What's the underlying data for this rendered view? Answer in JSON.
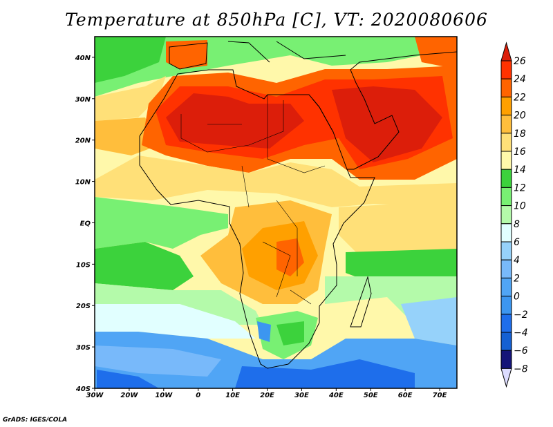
{
  "title": "Temperature at 850hPa [C], VT: 2020080606",
  "credit": "GrADS: IGES/COLA",
  "map": {
    "lon_range": [
      -30,
      75
    ],
    "lat_range": [
      -40,
      45
    ],
    "lon_ticks": [
      {
        "v": -30,
        "label": "30W"
      },
      {
        "v": -20,
        "label": "20W"
      },
      {
        "v": -10,
        "label": "10W"
      },
      {
        "v": 0,
        "label": "0"
      },
      {
        "v": 10,
        "label": "10E"
      },
      {
        "v": 20,
        "label": "20E"
      },
      {
        "v": 30,
        "label": "30E"
      },
      {
        "v": 40,
        "label": "40E"
      },
      {
        "v": 50,
        "label": "50E"
      },
      {
        "v": 60,
        "label": "60E"
      },
      {
        "v": 70,
        "label": "70E"
      }
    ],
    "lat_ticks": [
      {
        "v": 40,
        "label": "40N"
      },
      {
        "v": 30,
        "label": "30N"
      },
      {
        "v": 20,
        "label": "20N"
      },
      {
        "v": 10,
        "label": "10N"
      },
      {
        "v": 0,
        "label": "EQ"
      },
      {
        "v": -10,
        "label": "10S"
      },
      {
        "v": -20,
        "label": "20S"
      },
      {
        "v": -30,
        "label": "30S"
      },
      {
        "v": -40,
        "label": "40S"
      }
    ]
  },
  "colorbar": {
    "labels": [
      "26",
      "24",
      "22",
      "20",
      "18",
      "16",
      "14",
      "12",
      "10",
      "8",
      "6",
      "4",
      "2",
      "0",
      "−2",
      "−4",
      "−6",
      "−8"
    ],
    "top_color": "#dc1e0a",
    "bottom_color": "#dcdcff",
    "colors": [
      "#ff3200",
      "#ff6400",
      "#ffa000",
      "#ffbe3c",
      "#ffe078",
      "#fff8aa",
      "#3cd23c",
      "#78f073",
      "#b4faaa",
      "#e1ffff",
      "#96d2fa",
      "#78b9fa",
      "#50a5f5",
      "#3c96f0",
      "#1e6eeb",
      "#1460d2",
      "#141478"
    ]
  }
}
